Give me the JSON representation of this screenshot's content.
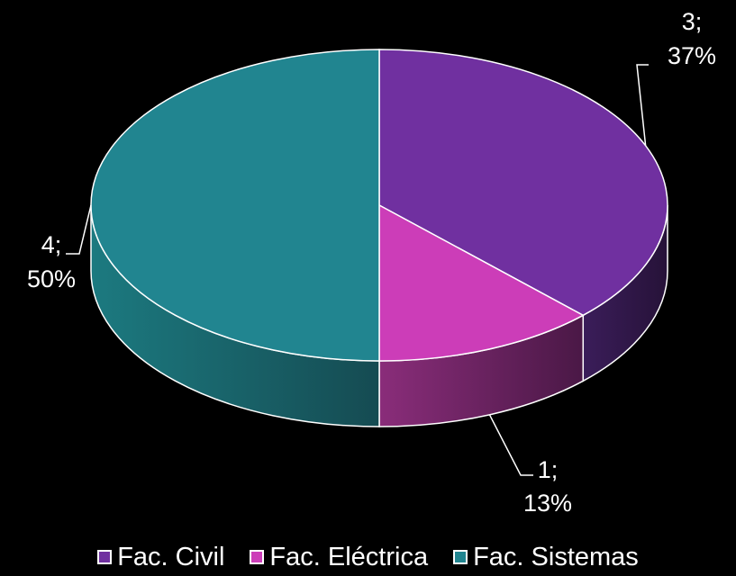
{
  "chart_data": {
    "type": "pie",
    "categories": [
      "Fac. Civil",
      "Fac. Eléctrica",
      "Fac. Sistemas"
    ],
    "values": [
      3,
      1,
      4
    ],
    "percentages": [
      "37%",
      "13%",
      "50%"
    ],
    "colors": [
      "#7030A0",
      "#CC3DB8",
      "#218590"
    ],
    "data_labels": [
      {
        "value": "3;",
        "percent": "37%"
      },
      {
        "value": "1;",
        "percent": "13%"
      },
      {
        "value": "4;",
        "percent": "50%"
      }
    ],
    "legend_position": "bottom",
    "style": "3d"
  },
  "legend": {
    "items": [
      {
        "label": "Fac. Civil",
        "color": "#7030A0"
      },
      {
        "label": "Fac. Eléctrica",
        "color": "#CC3DB8"
      },
      {
        "label": "Fac. Sistemas",
        "color": "#218590"
      }
    ]
  }
}
